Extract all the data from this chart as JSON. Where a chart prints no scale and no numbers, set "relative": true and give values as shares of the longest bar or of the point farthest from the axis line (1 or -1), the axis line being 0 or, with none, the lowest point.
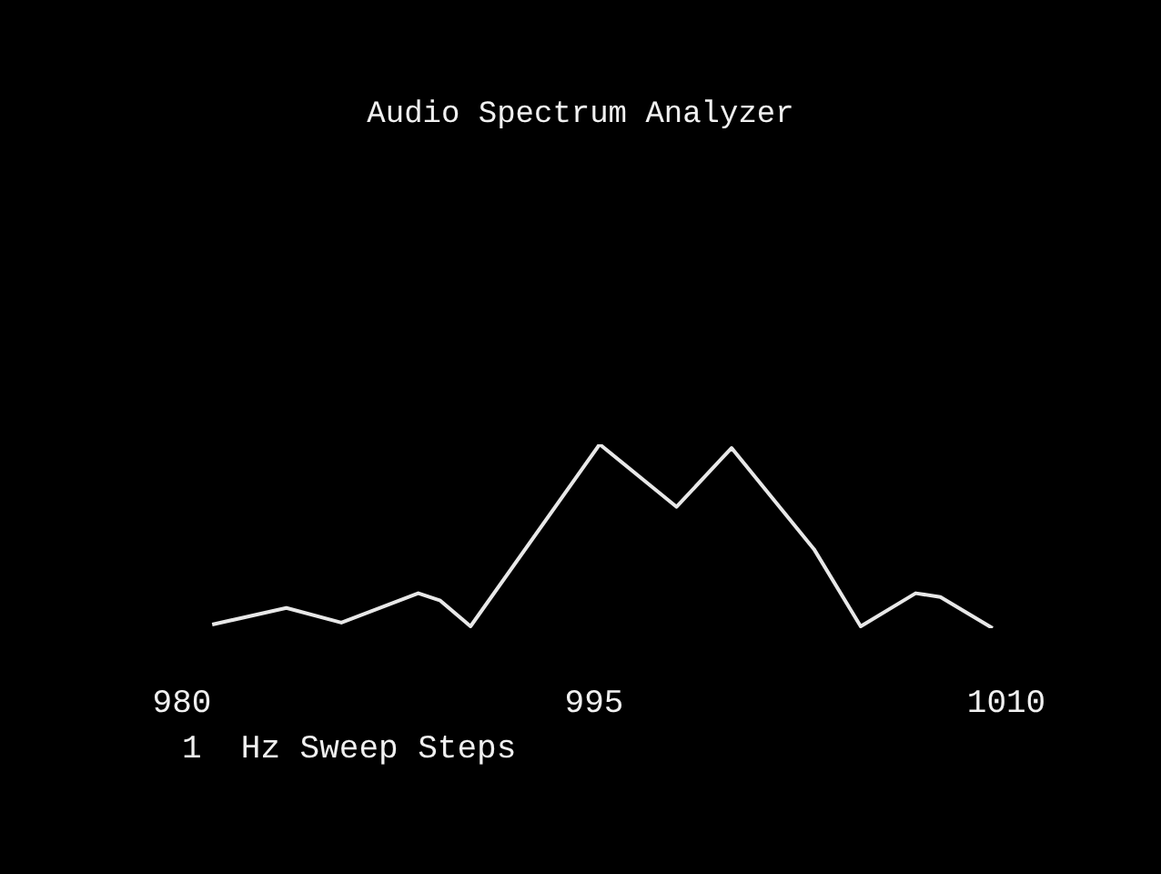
{
  "chart_data": {
    "type": "line",
    "title": "Audio Spectrum Analyzer",
    "xlabel": "1  Hz Sweep Steps",
    "relative": true,
    "xlim": [
      980,
      1010
    ],
    "xticks": [
      980,
      995,
      1010
    ],
    "grid": false,
    "legend": false,
    "marker": "none",
    "line_style": "solid",
    "series": [
      {
        "color": "#e8e8e8",
        "x": [
          981.1,
          983.8,
          985.8,
          988.6,
          989.4,
          990.5,
          995.2,
          998.0,
          1000.0,
          1003.0,
          1004.7,
          1006.7,
          1007.6,
          1009.5
        ],
        "values": [
          0.02,
          0.11,
          0.03,
          0.19,
          0.15,
          0.01,
          1,
          0.66,
          0.98,
          0.43,
          0.01,
          0.19,
          0.17,
          0
        ]
      }
    ]
  }
}
